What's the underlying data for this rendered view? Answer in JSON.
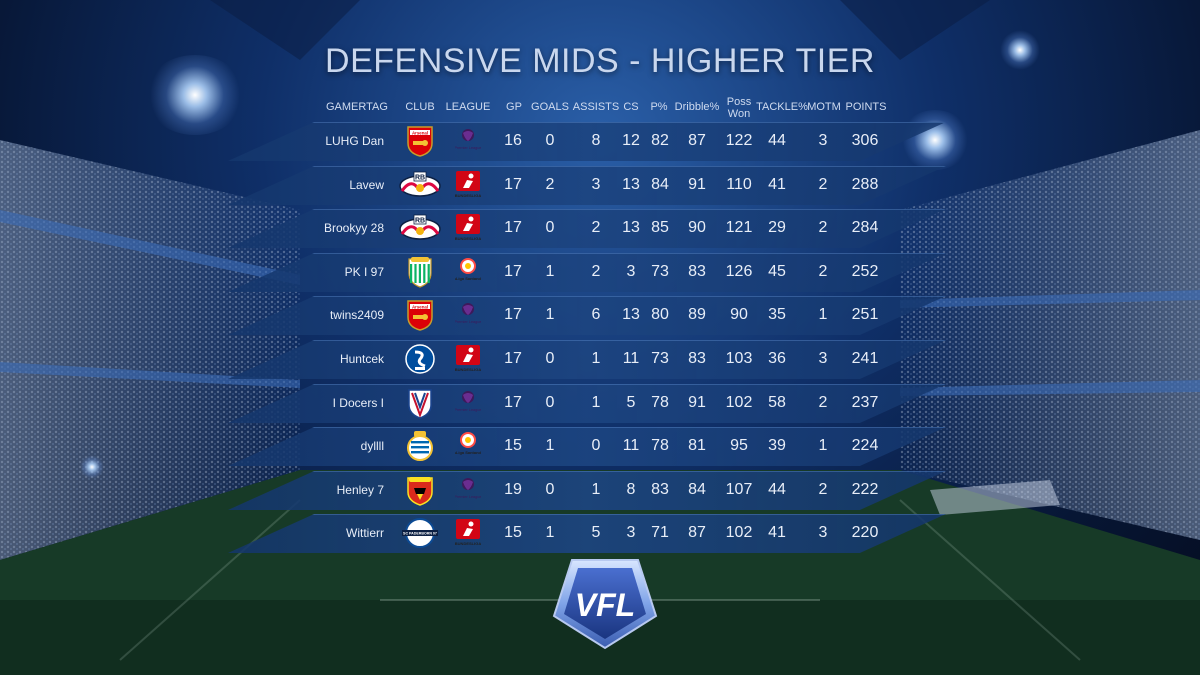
{
  "title": "DEFENSIVE MIDS - HIGHER TIER",
  "headers": {
    "gamertag": "GAMERTAG",
    "club": "CLUB",
    "league": "LEAGUE",
    "gp": "GP",
    "goals": "GOALS",
    "assists": "ASSISTS",
    "cs": "CS",
    "pass": "P%",
    "dribble": "Dribble%",
    "poss_line1": "Poss",
    "poss_line2": "Won",
    "tackle": "TACKLE%",
    "motm": "MOTM",
    "points": "POINTS"
  },
  "rows": [
    {
      "gamertag": "LUHG Dan",
      "club": "arsenal-crest",
      "league": "premier-league-logo",
      "gp": "16",
      "goals": "0",
      "assists": "8",
      "cs": "12",
      "pass": "82",
      "dribble": "87",
      "poss": "122",
      "tackle": "44",
      "motm": "3",
      "points": "306"
    },
    {
      "gamertag": "Lavew",
      "club": "rb-leipzig-crest",
      "league": "bundesliga-logo",
      "gp": "17",
      "goals": "2",
      "assists": "3",
      "cs": "13",
      "pass": "84",
      "dribble": "91",
      "poss": "110",
      "tackle": "41",
      "motm": "2",
      "points": "288"
    },
    {
      "gamertag": "Brookyy 28",
      "club": "rb-leipzig-crest",
      "league": "bundesliga-logo",
      "gp": "17",
      "goals": "0",
      "assists": "2",
      "cs": "13",
      "pass": "85",
      "dribble": "90",
      "poss": "121",
      "tackle": "29",
      "motm": "2",
      "points": "284"
    },
    {
      "gamertag": "PK I 97",
      "club": "real-betis-crest",
      "league": "laliga-logo",
      "gp": "17",
      "goals": "1",
      "assists": "2",
      "cs": "3",
      "pass": "73",
      "dribble": "83",
      "poss": "126",
      "tackle": "45",
      "motm": "2",
      "points": "252"
    },
    {
      "gamertag": "twins2409",
      "club": "arsenal-crest",
      "league": "premier-league-logo",
      "gp": "17",
      "goals": "1",
      "assists": "6",
      "cs": "13",
      "pass": "80",
      "dribble": "89",
      "poss": "90",
      "tackle": "35",
      "motm": "1",
      "points": "251"
    },
    {
      "gamertag": "Huntcek",
      "club": "schalke-crest",
      "league": "bundesliga-logo",
      "gp": "17",
      "goals": "0",
      "assists": "1",
      "cs": "11",
      "pass": "73",
      "dribble": "83",
      "poss": "103",
      "tackle": "36",
      "motm": "3",
      "points": "241"
    },
    {
      "gamertag": "I Docers I",
      "club": "crystal-palace-crest",
      "league": "premier-league-logo",
      "gp": "17",
      "goals": "0",
      "assists": "1",
      "cs": "5",
      "pass": "78",
      "dribble": "91",
      "poss": "102",
      "tackle": "58",
      "motm": "2",
      "points": "237"
    },
    {
      "gamertag": "dyllll",
      "club": "real-sociedad-crest",
      "league": "laliga-logo",
      "gp": "15",
      "goals": "1",
      "assists": "0",
      "cs": "11",
      "pass": "78",
      "dribble": "81",
      "poss": "95",
      "tackle": "39",
      "motm": "1",
      "points": "224"
    },
    {
      "gamertag": "Henley 7",
      "club": "man-united-crest",
      "league": "premier-league-logo",
      "gp": "19",
      "goals": "0",
      "assists": "1",
      "cs": "8",
      "pass": "83",
      "dribble": "84",
      "poss": "107",
      "tackle": "44",
      "motm": "2",
      "points": "222"
    },
    {
      "gamertag": "Wittierr",
      "club": "paderborn-crest",
      "league": "bundesliga-logo",
      "gp": "15",
      "goals": "1",
      "assists": "5",
      "cs": "3",
      "pass": "71",
      "dribble": "87",
      "poss": "102",
      "tackle": "41",
      "motm": "3",
      "points": "220"
    }
  ],
  "badge_text": {
    "arsenal": "Arsenal",
    "rb": "RB",
    "paderborn": "SC PADERBORN 07",
    "premier_league": "Premier League",
    "bundesliga": "BUNDESLIGA",
    "laliga": "LaLiga Santander"
  },
  "logo_text": "VFL",
  "colors": {
    "band": "#1c4480",
    "text": "#e8eef8",
    "arsenal_red": "#db0007",
    "bundesliga_red": "#d20515",
    "schalke_blue": "#004d9d",
    "betis_green": "#0bb363"
  }
}
